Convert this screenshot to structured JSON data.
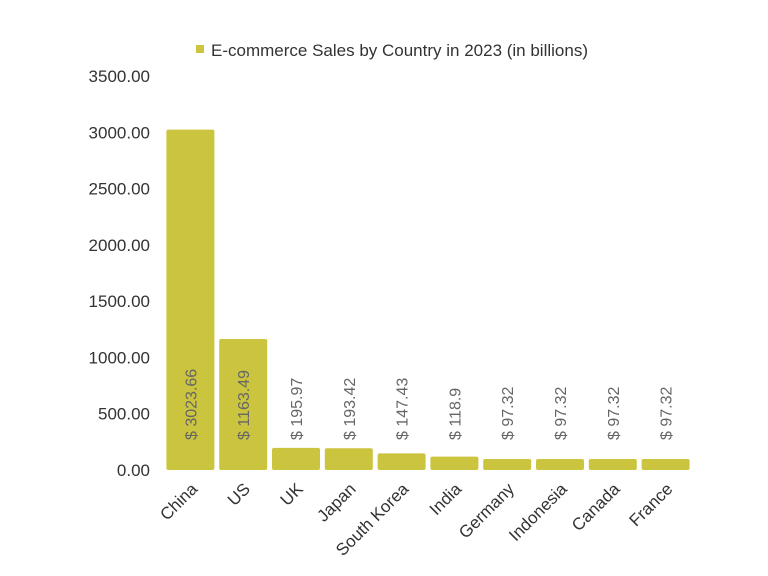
{
  "chart_data": {
    "type": "bar",
    "categories": [
      "China",
      "US",
      "UK",
      "Japan",
      "South Korea",
      "India",
      "Germany",
      "Indonesia",
      "Canada",
      "France"
    ],
    "series": [
      {
        "name": "E-commerce Sales by Country in 2023 (in billions)",
        "values": [
          3023.66,
          1163.49,
          195.97,
          193.42,
          147.43,
          118.9,
          97.32,
          97.32,
          97.32,
          97.32
        ],
        "data_labels": [
          "$ 3023.66",
          "$ 1163.49",
          "$ 195.97",
          "$ 193.42",
          "$ 147.43",
          "$ 118.9",
          "$ 97.32",
          "$ 97.32",
          "$ 97.32",
          "$ 97.32"
        ],
        "color": "#cbc43e"
      }
    ],
    "y_ticks": [
      "0.00",
      "500.00",
      "1000.00",
      "1500.00",
      "2000.00",
      "2500.00",
      "3000.00",
      "3500.00"
    ],
    "ylim": [
      0,
      3500
    ],
    "legend_position": "top",
    "grid": false
  }
}
